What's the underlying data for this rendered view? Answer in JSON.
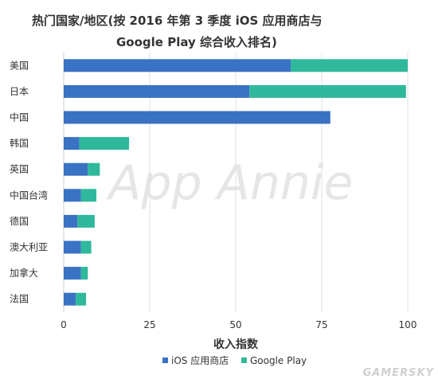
{
  "chart_data": {
    "type": "bar",
    "orientation": "horizontal",
    "stacked": true,
    "title_lines": [
      "热门国家/地区(按 2016 年第 3 季度 iOS 应用商店与",
      "Google Play 综合收入排名)"
    ],
    "categories": [
      "美国",
      "日本",
      "中国",
      "韩国",
      "英国",
      "中国台湾",
      "德国",
      "澳大利亚",
      "加拿大",
      "法国"
    ],
    "series": [
      {
        "name": "iOS 应用商店",
        "color": "#3a72c4",
        "values": [
          66,
          54,
          77.5,
          4.5,
          7,
          5,
          4,
          5,
          5,
          3.5
        ]
      },
      {
        "name": "Google Play",
        "color": "#2fb89b",
        "values": [
          34,
          45.5,
          0,
          14.5,
          3.5,
          4.5,
          5,
          3,
          2,
          3
        ]
      }
    ],
    "xlabel": "收入指数",
    "xlim": [
      0,
      100
    ],
    "xticks": [
      0,
      25,
      50,
      75,
      100
    ],
    "grid": "vertical",
    "legend_position": "bottom"
  },
  "watermark": "App Annie",
  "source_mark": "GAMERSKY"
}
